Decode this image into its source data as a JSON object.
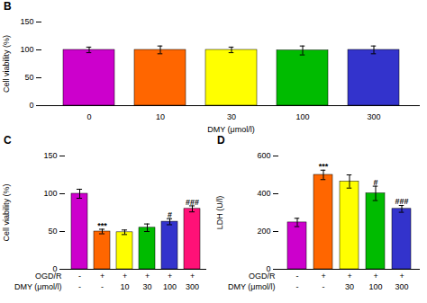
{
  "chart_data": [
    {
      "type": "bar",
      "title": "B",
      "categories": [
        "0",
        "10",
        "30",
        "100",
        "300"
      ],
      "values": [
        100,
        100,
        100,
        99,
        100
      ],
      "errors": [
        5,
        7,
        5,
        8,
        7
      ],
      "colors": [
        "#CC00CC",
        "#FF6600",
        "#FFFF00",
        "#00BB00",
        "#3333CC"
      ],
      "xlabel": "DMY (μmol/l)",
      "ylabel": "Cell viability (%)",
      "ylim": [
        0,
        150
      ],
      "yticks": [
        0,
        50,
        100,
        150
      ]
    },
    {
      "type": "bar",
      "title": "C",
      "categories": [
        null,
        null,
        null,
        null,
        null,
        null
      ],
      "values": [
        100,
        50,
        49,
        55,
        63,
        80
      ],
      "errors": [
        6,
        3,
        3,
        5,
        4,
        4
      ],
      "colors": [
        "#CC00CC",
        "#FF6600",
        "#FFFF00",
        "#00BB00",
        "#3333CC",
        "#FF1177"
      ],
      "ylabel": "Cell viability (%)",
      "category_rows": [
        {
          "name": "OGD/R",
          "labels": [
            "-",
            "+",
            "+",
            "+",
            "+",
            "+"
          ]
        },
        {
          "name": "DMY (μmol/l)",
          "labels": [
            "-",
            "-",
            "10",
            "30",
            "100",
            "300"
          ]
        }
      ],
      "ylim": [
        0,
        150
      ],
      "yticks": [
        0,
        50,
        100,
        150
      ],
      "annotations": [
        {
          "x": 1,
          "y": 54,
          "text": "***"
        },
        {
          "x": 4,
          "y": 68,
          "text": "#"
        },
        {
          "x": 5,
          "y": 85,
          "text": "###"
        }
      ]
    },
    {
      "type": "bar",
      "title": "D",
      "categories": [
        null,
        null,
        null,
        null,
        null
      ],
      "values": [
        248,
        500,
        465,
        402,
        320
      ],
      "errors": [
        22,
        25,
        35,
        38,
        18
      ],
      "colors": [
        "#CC00CC",
        "#FF6600",
        "#FFFF00",
        "#00BB00",
        "#3333CC"
      ],
      "ylabel": "LDH (U/l)",
      "category_rows": [
        {
          "name": "OGD/R",
          "labels": [
            "-",
            "+",
            "+",
            "+",
            "+"
          ]
        },
        {
          "name": "DMY (μmol/l)",
          "labels": [
            "-",
            "-",
            "30",
            "100",
            "300"
          ]
        }
      ],
      "ylim": [
        0,
        600
      ],
      "yticks": [
        0,
        200,
        400,
        600
      ],
      "annotations": [
        {
          "x": 1,
          "y": 530,
          "text": "***"
        },
        {
          "x": 3,
          "y": 445,
          "text": "#"
        },
        {
          "x": 4,
          "y": 345,
          "text": "###"
        }
      ]
    }
  ]
}
